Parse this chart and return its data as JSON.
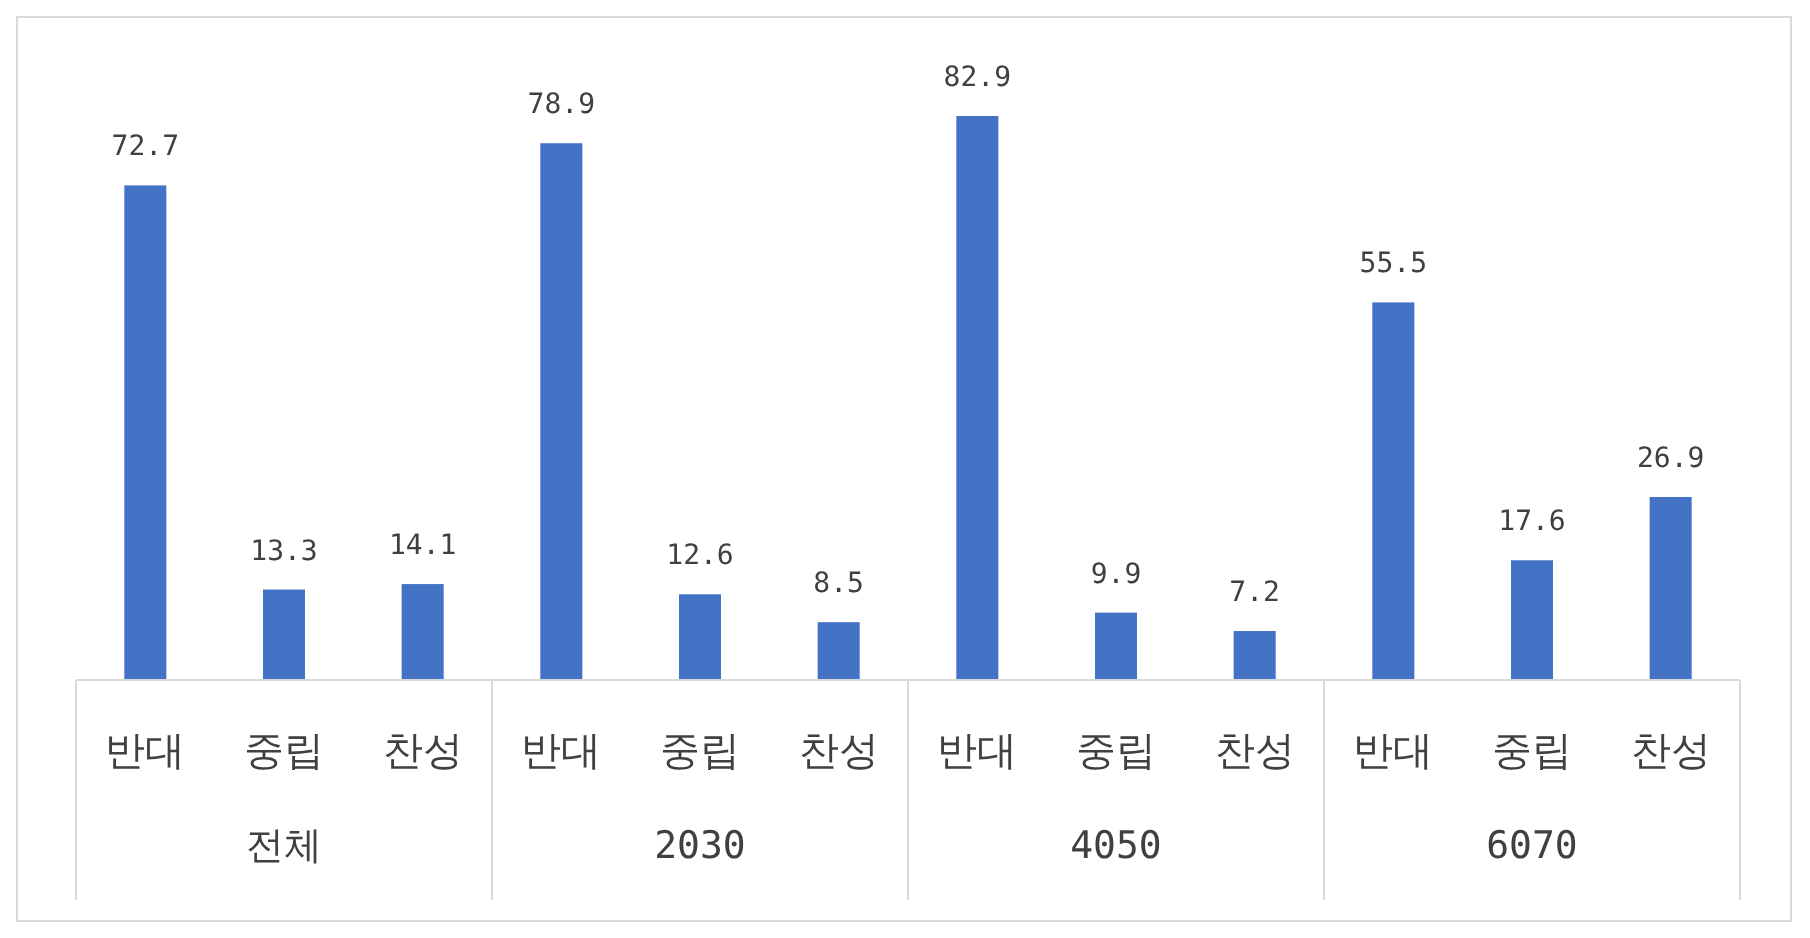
{
  "chart_data": {
    "type": "bar",
    "categories": [
      "반대",
      "중립",
      "찬성",
      "반대",
      "중립",
      "찬성",
      "반대",
      "중립",
      "찬성",
      "반대",
      "중립",
      "찬성"
    ],
    "values": [
      72.7,
      13.3,
      14.1,
      78.9,
      12.6,
      8.5,
      82.9,
      9.9,
      7.2,
      55.5,
      17.6,
      26.9
    ],
    "color": "#4472c4",
    "data_labels": true,
    "annotations": [
      "전체",
      "2030",
      "4050",
      "6070"
    ]
  }
}
